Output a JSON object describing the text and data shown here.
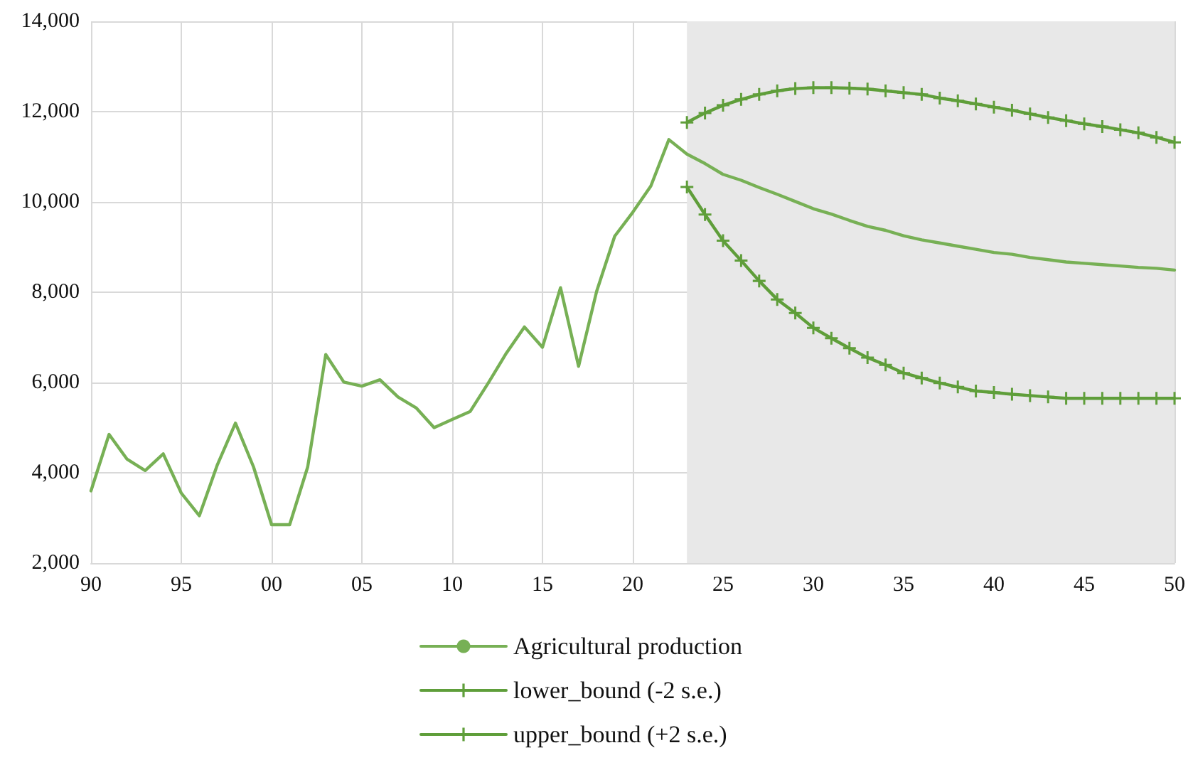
{
  "chart_data": {
    "type": "line",
    "x": [
      1990,
      1991,
      1992,
      1993,
      1994,
      1995,
      1996,
      1997,
      1998,
      1999,
      2000,
      2001,
      2002,
      2003,
      2004,
      2005,
      2006,
      2007,
      2008,
      2009,
      2010,
      2011,
      2012,
      2013,
      2014,
      2015,
      2016,
      2017,
      2018,
      2019,
      2020,
      2021,
      2022,
      2023,
      2024,
      2025,
      2026,
      2027,
      2028,
      2029,
      2030,
      2031,
      2032,
      2033,
      2034,
      2035,
      2036,
      2037,
      2038,
      2039,
      2040,
      2041,
      2042,
      2043,
      2044,
      2045,
      2046,
      2047,
      2048,
      2049,
      2050
    ],
    "series": [
      {
        "name": "Agricultural production",
        "color": "#77b055",
        "marker": "none",
        "values": [
          3600,
          4850,
          4300,
          4050,
          4420,
          3550,
          3050,
          4180,
          5100,
          4130,
          2850,
          2850,
          4130,
          6620,
          6010,
          5920,
          6060,
          5680,
          5440,
          5000,
          5180,
          5360,
          5990,
          6650,
          7230,
          6780,
          8100,
          6360,
          8020,
          9240,
          9770,
          10350,
          11380,
          11060,
          10850,
          10610,
          10480,
          10320,
          10170,
          10010,
          9850,
          9730,
          9590,
          9460,
          9370,
          9250,
          9160,
          9090,
          9020,
          8950,
          8880,
          8840,
          8770,
          8720,
          8670,
          8640,
          8610,
          8580,
          8550,
          8530,
          8490
        ]
      },
      {
        "name": "lower_bound (-2 s.e.)",
        "color": "#5f9e3a",
        "marker": "cross",
        "x": [
          2023,
          2024,
          2025,
          2026,
          2027,
          2028,
          2029,
          2030,
          2031,
          2032,
          2033,
          2034,
          2035,
          2036,
          2037,
          2038,
          2039,
          2040,
          2041,
          2042,
          2043,
          2044,
          2045,
          2046,
          2047,
          2048,
          2049,
          2050
        ],
        "values": [
          10330,
          9720,
          9140,
          8700,
          8250,
          7840,
          7540,
          7210,
          6980,
          6760,
          6550,
          6390,
          6210,
          6100,
          5990,
          5900,
          5810,
          5780,
          5740,
          5710,
          5680,
          5650,
          5650,
          5650,
          5650,
          5650,
          5650,
          5650
        ]
      },
      {
        "name": "upper_bound (+2 s.e.)",
        "color": "#5f9e3a",
        "marker": "cross",
        "x": [
          2023,
          2024,
          2025,
          2026,
          2027,
          2028,
          2029,
          2030,
          2031,
          2032,
          2033,
          2034,
          2035,
          2036,
          2037,
          2038,
          2039,
          2040,
          2041,
          2042,
          2043,
          2044,
          2045,
          2046,
          2047,
          2048,
          2049,
          2050
        ],
        "values": [
          11760,
          11970,
          12140,
          12270,
          12380,
          12460,
          12510,
          12530,
          12530,
          12520,
          12500,
          12460,
          12420,
          12380,
          12300,
          12240,
          12170,
          12100,
          12030,
          11950,
          11870,
          11800,
          11730,
          11670,
          11600,
          11530,
          11430,
          11320
        ]
      }
    ],
    "xlim": [
      1990,
      2050
    ],
    "xticks": [
      {
        "value": 1990,
        "label": "90"
      },
      {
        "value": 1995,
        "label": "95"
      },
      {
        "value": 2000,
        "label": "00"
      },
      {
        "value": 2005,
        "label": "05"
      },
      {
        "value": 2010,
        "label": "10"
      },
      {
        "value": 2015,
        "label": "15"
      },
      {
        "value": 2020,
        "label": "20"
      },
      {
        "value": 2025,
        "label": "25"
      },
      {
        "value": 2030,
        "label": "30"
      },
      {
        "value": 2035,
        "label": "35"
      },
      {
        "value": 2040,
        "label": "40"
      },
      {
        "value": 2045,
        "label": "45"
      },
      {
        "value": 2050,
        "label": "50"
      }
    ],
    "ylim": [
      2000,
      14000
    ],
    "yticks": [
      {
        "value": 2000,
        "label": "2,000"
      },
      {
        "value": 4000,
        "label": "4,000"
      },
      {
        "value": 6000,
        "label": "6,000"
      },
      {
        "value": 8000,
        "label": "8,000"
      },
      {
        "value": 10000,
        "label": "10,000"
      },
      {
        "value": 12000,
        "label": "12,000"
      },
      {
        "value": 14000,
        "label": "14,000"
      }
    ],
    "bands": [
      {
        "axis": "x",
        "from": 2023,
        "to": 2050,
        "color": "#e8e8e8"
      }
    ],
    "grid": true,
    "legend": "bottom",
    "line_style": "solid"
  }
}
